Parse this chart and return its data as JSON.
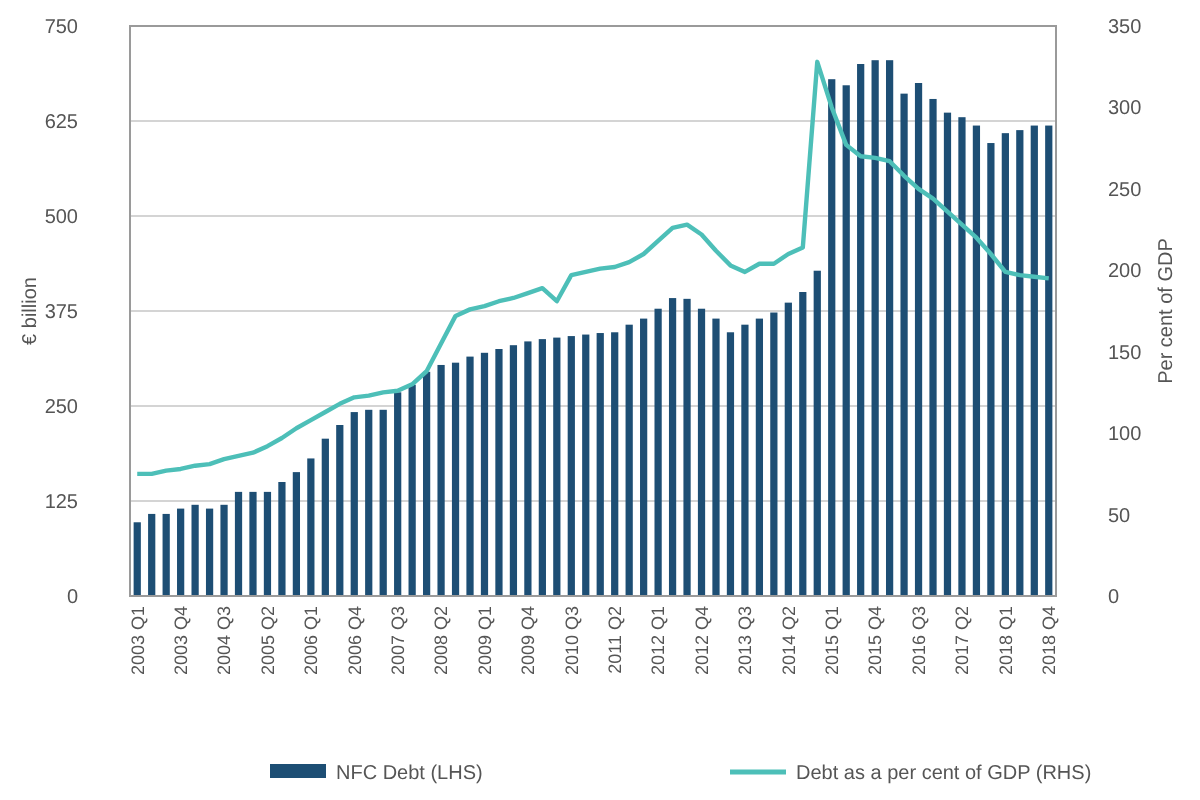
{
  "chart_data": {
    "type": "bar",
    "ylabel": "€ billion",
    "y2label": "Per cent of GDP",
    "categories": [
      "2003 Q1",
      null,
      null,
      "2003 Q4",
      null,
      null,
      "2004 Q3",
      null,
      null,
      "2005 Q2",
      null,
      null,
      "2006 Q1",
      null,
      null,
      "2006 Q4",
      null,
      null,
      "2007 Q3",
      null,
      null,
      "2008 Q2",
      null,
      null,
      "2009 Q1",
      null,
      null,
      "2009 Q4",
      null,
      null,
      "2010 Q3",
      null,
      null,
      "2011 Q2",
      null,
      null,
      "2012 Q1",
      null,
      null,
      "2012 Q4",
      null,
      null,
      "2013 Q3",
      null,
      null,
      "2014 Q2",
      null,
      null,
      "2015 Q1",
      null,
      null,
      "2015 Q4",
      null,
      null,
      "2016 Q3",
      null,
      null,
      "2017 Q2",
      null,
      null,
      "2018 Q1",
      null,
      null,
      "2018 Q4"
    ],
    "series": [
      {
        "name": "NFC Debt (LHS)",
        "color": "#1d4e74",
        "values": [
          97,
          108,
          108,
          115,
          120,
          115,
          120,
          137,
          137,
          137,
          150,
          163,
          181,
          207,
          225,
          242,
          245,
          245,
          268,
          278,
          295,
          304,
          307,
          315,
          320,
          325,
          330,
          335,
          338,
          340,
          342,
          344,
          346,
          347,
          357,
          365,
          378,
          392,
          391,
          378,
          365,
          347,
          357,
          365,
          373,
          386,
          400,
          428,
          680,
          672,
          700,
          705,
          705,
          661,
          675,
          654,
          636,
          630,
          619,
          596,
          609,
          613,
          619,
          619
        ]
      },
      {
        "name": "Debt as a per cent of GDP (RHS)",
        "type": "line",
        "axis": "y2",
        "color": "#4dbfb8",
        "values": [
          75,
          75,
          77,
          78,
          80,
          81,
          84,
          86,
          88,
          92,
          97,
          103,
          108,
          113,
          118,
          122,
          123,
          125,
          126,
          130,
          138,
          155,
          172,
          176,
          178,
          181,
          183,
          186,
          189,
          181,
          197,
          199,
          201,
          202,
          205,
          210,
          218,
          226,
          228,
          222,
          212,
          203,
          199,
          204,
          204,
          210,
          214,
          328,
          300,
          277,
          270,
          269,
          267,
          258,
          250,
          244,
          236,
          228,
          220,
          210,
          199,
          197,
          196,
          195
        ]
      }
    ],
    "ylim": [
      0,
      750
    ],
    "yticks": [
      0,
      125,
      250,
      375,
      500,
      625,
      750
    ],
    "y2lim": [
      0,
      350
    ],
    "y2ticks": [
      0,
      50,
      100,
      150,
      200,
      250,
      300,
      350
    ],
    "grid": "y",
    "legend": "bottom"
  }
}
